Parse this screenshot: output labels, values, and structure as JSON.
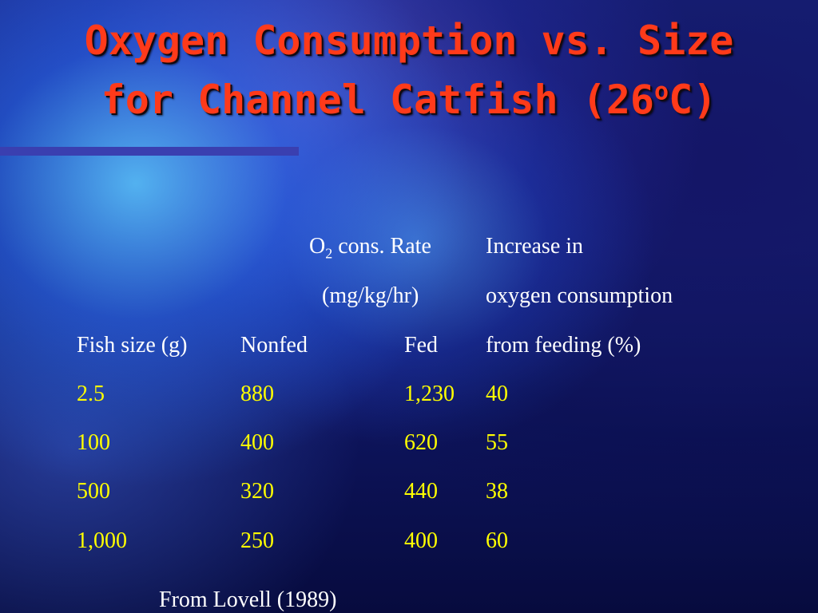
{
  "slide": {
    "title_line1": "Oxygen Consumption vs. Size",
    "title_line2_prefix": "for Channel Catfish (26",
    "title_degree": "o",
    "title_line2_suffix": "C)",
    "source": "From Lovell (1989)"
  },
  "colors": {
    "title": "#ff3a1a",
    "header_text": "#ffffff",
    "value_text": "#ffff00",
    "rule": "#3a3fb0"
  },
  "table": {
    "header": {
      "o2_prefix": "O",
      "o2_sub": "2",
      "o2_suffix": " cons. Rate",
      "units": "(mg/kg/hr)",
      "increase_line1": "Increase in",
      "increase_line2": "oxygen consumption",
      "increase_line3": "from feeding (%)",
      "fish_size": "Fish size (g)",
      "nonfed": "Nonfed",
      "fed": "Fed"
    },
    "rows": [
      {
        "size": "2.5",
        "nonfed": "880",
        "fed": "1,230",
        "increase": "40"
      },
      {
        "size": "100",
        "nonfed": "400",
        "fed": "620",
        "increase": "55"
      },
      {
        "size": "500",
        "nonfed": "320",
        "fed": "440",
        "increase": "38"
      },
      {
        "size": "1,000",
        "nonfed": "250",
        "fed": "400",
        "increase": "60"
      }
    ]
  }
}
